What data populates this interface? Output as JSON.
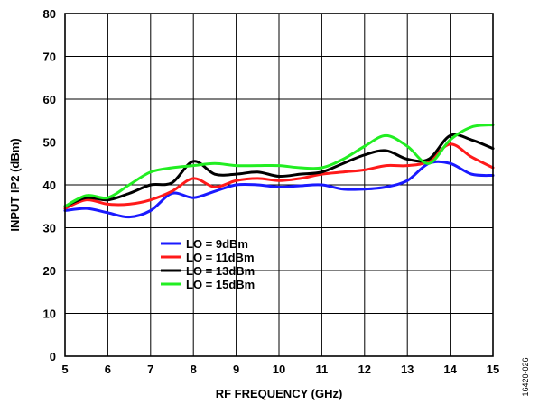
{
  "chart_data": {
    "type": "line",
    "xlabel": "RF FREQUENCY (GHz)",
    "ylabel": "INPUT IP2 (dBm)",
    "xlim": [
      5,
      15
    ],
    "ylim": [
      0,
      80
    ],
    "x_ticks": [
      5,
      6,
      7,
      8,
      9,
      10,
      11,
      12,
      13,
      14,
      15
    ],
    "y_ticks": [
      0,
      10,
      20,
      30,
      40,
      50,
      60,
      70,
      80
    ],
    "grid": true,
    "legend_position": "lower-center",
    "figure_id": "16420-026",
    "series": [
      {
        "name": "LO = 9dBm",
        "color": "#1a1aff",
        "x": [
          5.0,
          5.5,
          6.0,
          6.5,
          7.0,
          7.5,
          8.0,
          8.5,
          9.0,
          9.5,
          10.0,
          10.5,
          11.0,
          11.5,
          12.0,
          12.5,
          13.0,
          13.5,
          14.0,
          14.5,
          15.0
        ],
        "y": [
          34,
          34.5,
          33.5,
          32.5,
          34,
          38,
          37,
          38.5,
          40,
          40,
          39.5,
          39.8,
          40,
          39,
          39,
          39.5,
          41,
          45,
          45,
          42.5,
          42.2
        ]
      },
      {
        "name": "LO = 11dBm",
        "color": "#ff1a1a",
        "x": [
          5.0,
          5.5,
          6.0,
          6.5,
          7.0,
          7.5,
          8.0,
          8.5,
          9.0,
          9.5,
          10.0,
          10.5,
          11.0,
          11.5,
          12.0,
          12.5,
          13.0,
          13.5,
          14.0,
          14.5,
          15.0
        ],
        "y": [
          34.5,
          36.5,
          35.5,
          35.5,
          36.5,
          38.5,
          41.5,
          39.5,
          41,
          41.5,
          41,
          41.5,
          42.5,
          43,
          43.5,
          44.5,
          44.5,
          45.5,
          49.5,
          46.5,
          44
        ]
      },
      {
        "name": "LO = 13dBm",
        "color": "#000000",
        "x": [
          5.0,
          5.5,
          6.0,
          6.5,
          7.0,
          7.5,
          8.0,
          8.5,
          9.0,
          9.5,
          10.0,
          10.5,
          11.0,
          11.5,
          12.0,
          12.5,
          13.0,
          13.5,
          14.0,
          14.5,
          15.0
        ],
        "y": [
          35,
          37,
          36.5,
          38,
          40,
          40.5,
          45.5,
          42.5,
          42.5,
          43,
          42,
          42.5,
          43,
          45,
          47,
          48,
          46,
          46,
          51.5,
          50.5,
          48.5
        ]
      },
      {
        "name": "LO = 15dBm",
        "color": "#22ee22",
        "x": [
          5.0,
          5.5,
          6.0,
          6.5,
          7.0,
          7.5,
          8.0,
          8.5,
          9.0,
          9.5,
          10.0,
          10.5,
          11.0,
          11.5,
          12.0,
          12.5,
          13.0,
          13.5,
          14.0,
          14.5,
          15.0
        ],
        "y": [
          35,
          37.5,
          37,
          40,
          43,
          44,
          44.5,
          45,
          44.5,
          44.5,
          44.5,
          44,
          44,
          46,
          49,
          51.5,
          49,
          45,
          50.5,
          53.5,
          54
        ]
      }
    ]
  }
}
